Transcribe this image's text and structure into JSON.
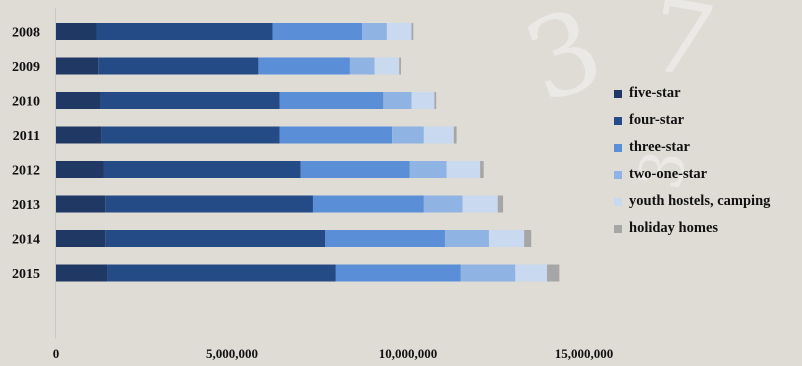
{
  "chart_data": {
    "type": "bar",
    "orientation": "horizontal",
    "stacked": true,
    "categories": [
      "2008",
      "2009",
      "2010",
      "2011",
      "2012",
      "2013",
      "2014",
      "2015"
    ],
    "series": [
      {
        "name": "five-star",
        "color": "#1f3864",
        "values": [
          1150000,
          1200000,
          1250000,
          1300000,
          1350000,
          1400000,
          1400000,
          1450000
        ]
      },
      {
        "name": "four-star",
        "color": "#254b86",
        "values": [
          5000000,
          4550000,
          5100000,
          5050000,
          5600000,
          5900000,
          6250000,
          6500000
        ]
      },
      {
        "name": "three-star",
        "color": "#5a8ed6",
        "values": [
          2550000,
          2600000,
          2950000,
          3200000,
          3100000,
          3150000,
          3400000,
          3550000
        ]
      },
      {
        "name": "two-one-star",
        "color": "#8fb4e3",
        "values": [
          700000,
          700000,
          800000,
          900000,
          1050000,
          1100000,
          1250000,
          1550000
        ]
      },
      {
        "name": "youth hostels, camping",
        "color": "#c9d9ef",
        "values": [
          700000,
          700000,
          650000,
          850000,
          950000,
          1000000,
          1000000,
          900000
        ]
      },
      {
        "name": "holiday homes",
        "color": "#a6a6a6",
        "values": [
          50000,
          50000,
          50000,
          80000,
          100000,
          150000,
          200000,
          350000
        ]
      }
    ],
    "xlim": [
      0,
      15000000
    ],
    "x_ticks": [
      "0",
      "5,000,000",
      "10,000,000",
      "15,000,000"
    ],
    "legend_position": "right",
    "grid": false
  }
}
